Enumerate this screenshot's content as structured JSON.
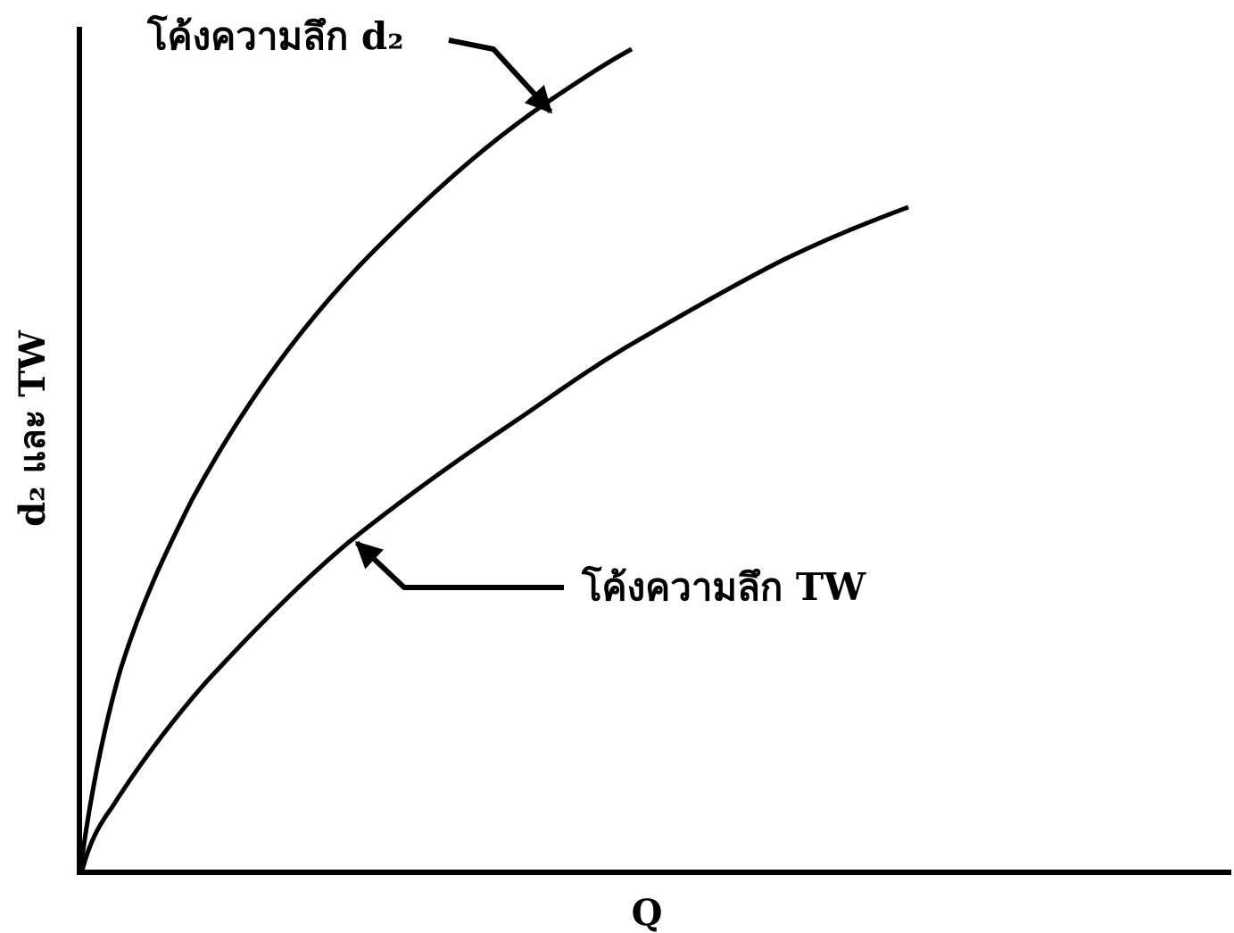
{
  "axes": {
    "x_label": "Q",
    "y_label": "d₂ และ TW"
  },
  "curves": {
    "d2": {
      "label": "โค้งความลึก d₂"
    },
    "tw": {
      "label": "โค้งความลึก TW"
    }
  },
  "colors": {
    "ink": "#000000",
    "background": "#ffffff"
  }
}
